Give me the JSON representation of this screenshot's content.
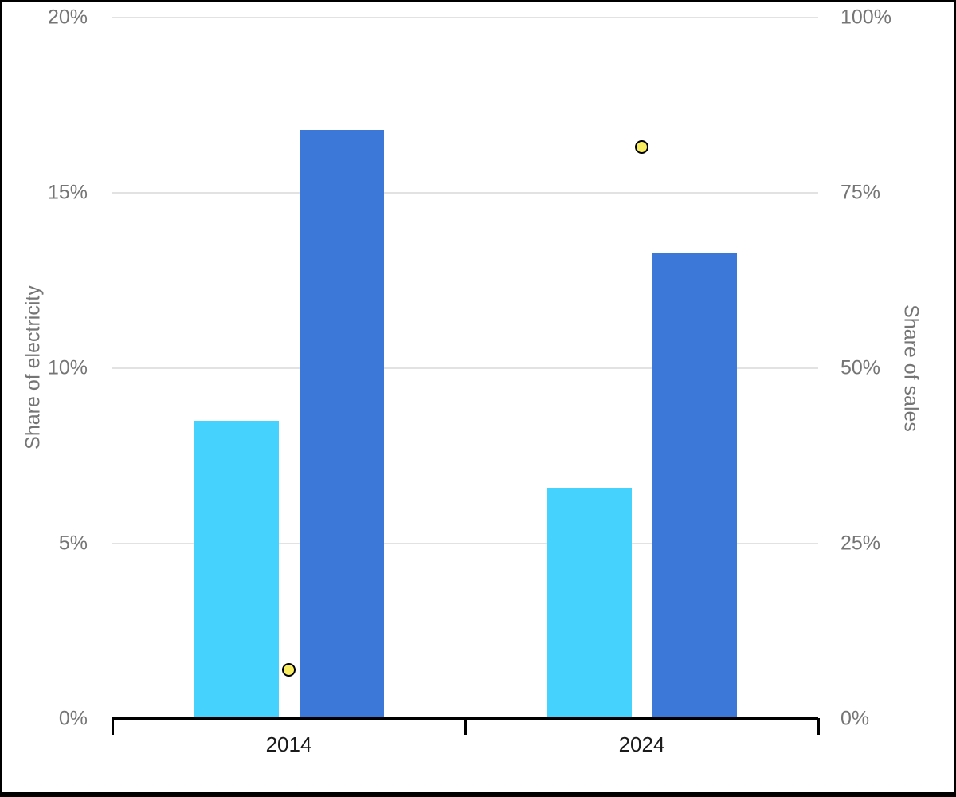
{
  "chart_data": {
    "type": "bar",
    "categories": [
      "2014",
      "2024"
    ],
    "series": [
      {
        "name": "electricity-share-light-blue",
        "type": "bar",
        "axis": "left",
        "color": "#45D2FC",
        "values": [
          8.5,
          6.6
        ]
      },
      {
        "name": "electricity-share-dark-blue",
        "type": "bar",
        "axis": "left",
        "color": "#3C78D8",
        "values": [
          16.8,
          13.3
        ]
      },
      {
        "name": "sales-share-yellow-points",
        "type": "scatter",
        "axis": "right",
        "color": "#F8EC60",
        "stroke": "#000000",
        "values": [
          7,
          81.5
        ]
      }
    ],
    "left_axis": {
      "label": "Share of electricity",
      "range": [
        0,
        20
      ],
      "ticks": [
        {
          "value": 0,
          "label": "0%"
        },
        {
          "value": 5,
          "label": "5%"
        },
        {
          "value": 10,
          "label": "10%"
        },
        {
          "value": 15,
          "label": "15%"
        },
        {
          "value": 20,
          "label": "20%"
        }
      ]
    },
    "right_axis": {
      "label": "Share of sales",
      "range": [
        0,
        100
      ],
      "ticks": [
        {
          "value": 0,
          "label": "0%"
        },
        {
          "value": 25,
          "label": "25%"
        },
        {
          "value": 50,
          "label": "50%"
        },
        {
          "value": 75,
          "label": "75%"
        },
        {
          "value": 100,
          "label": "100%"
        }
      ]
    },
    "grid": true,
    "legend": "none"
  },
  "colors": {
    "background": "#ffffff",
    "frame_border": "#000000",
    "axis_line": "#000000",
    "gridline": "#e2e2e2",
    "axis_text": "#757575",
    "category_text": "#1a1a1a"
  }
}
